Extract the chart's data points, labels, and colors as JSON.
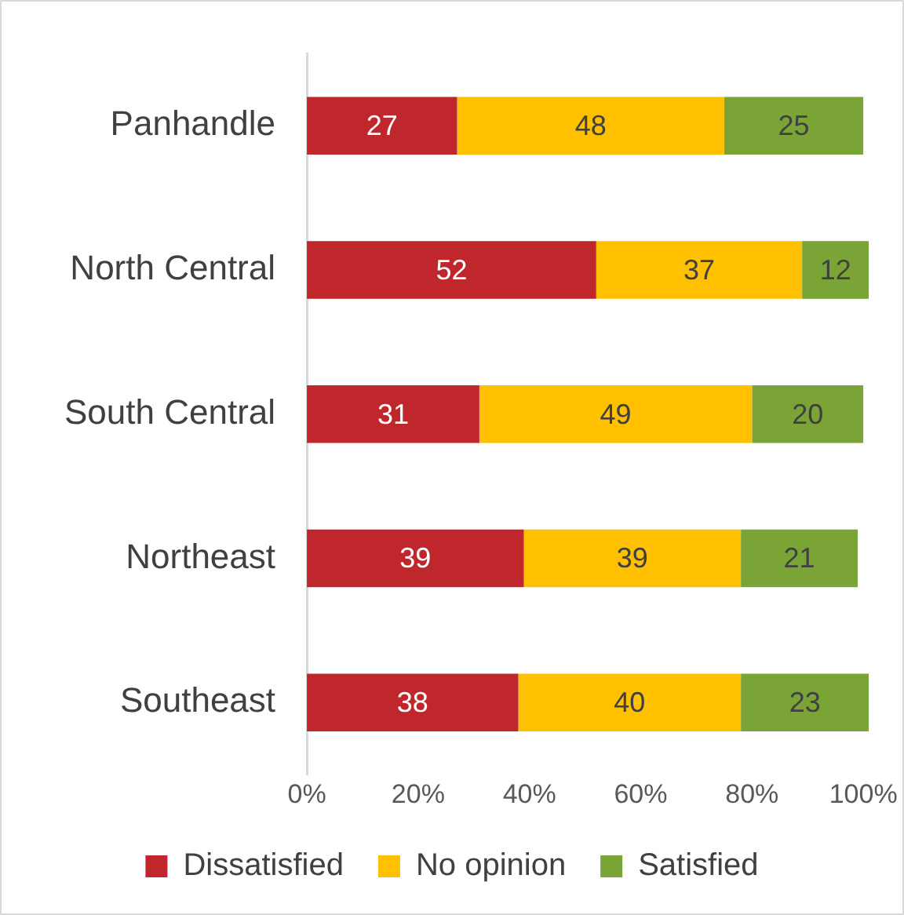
{
  "chart_data": {
    "type": "bar",
    "orientation": "horizontal",
    "stacked": true,
    "categories": [
      "Panhandle",
      "North Central",
      "South Central",
      "Northeast",
      "Southeast"
    ],
    "series": [
      {
        "name": "Dissatisfied",
        "color": "#c0272d",
        "values": [
          27,
          52,
          31,
          39,
          38
        ]
      },
      {
        "name": "No opinion",
        "color": "#ffc000",
        "values": [
          48,
          37,
          49,
          39,
          40
        ]
      },
      {
        "name": "Satisfied",
        "color": "#7aa536",
        "values": [
          25,
          12,
          20,
          21,
          23
        ]
      }
    ],
    "xlim": [
      0,
      101
    ],
    "xticks": [
      {
        "value": 0,
        "label": "0%"
      },
      {
        "value": 20,
        "label": "20%"
      },
      {
        "value": 40,
        "label": "40%"
      },
      {
        "value": 60,
        "label": "60%"
      },
      {
        "value": 80,
        "label": "80%"
      },
      {
        "value": 100,
        "label": "100%"
      }
    ],
    "data_labels": true,
    "grid": false,
    "legend": "bottom"
  }
}
